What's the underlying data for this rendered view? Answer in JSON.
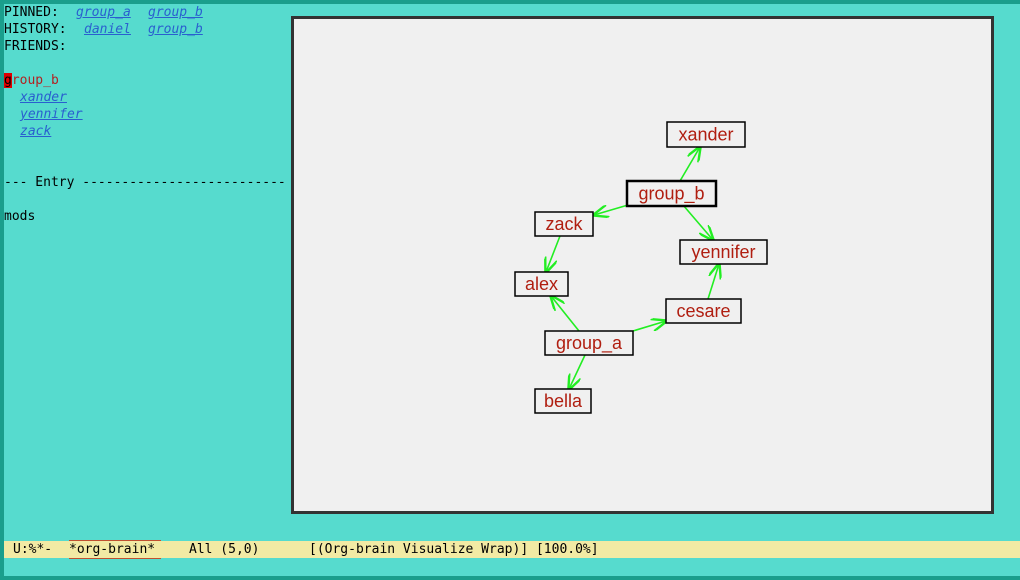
{
  "header": {
    "pinned": {
      "label": "PINNED:",
      "items": [
        "group_a",
        "group_b"
      ]
    },
    "history": {
      "label": "HISTORY:",
      "items": [
        "daniel",
        "group_b"
      ]
    },
    "friends": {
      "label": "FRIENDS:"
    }
  },
  "entry": {
    "title": "group_b",
    "children": [
      "xander",
      "yennifer",
      "zack"
    ],
    "separator": "--- Entry --------------------------",
    "text": "mods"
  },
  "graph": {
    "nodes": [
      {
        "label": "xander"
      },
      {
        "label": "group_b"
      },
      {
        "label": "zack"
      },
      {
        "label": "yennifer"
      },
      {
        "label": "alex"
      },
      {
        "label": "cesare"
      },
      {
        "label": "group_a"
      },
      {
        "label": "bella"
      }
    ]
  },
  "mode_line": {
    "status": "U:%*-",
    "buffer": "*org-brain*",
    "position": "All (5,0)",
    "modes": "[(Org-brain Visualize Wrap)] [100.0%]"
  }
}
